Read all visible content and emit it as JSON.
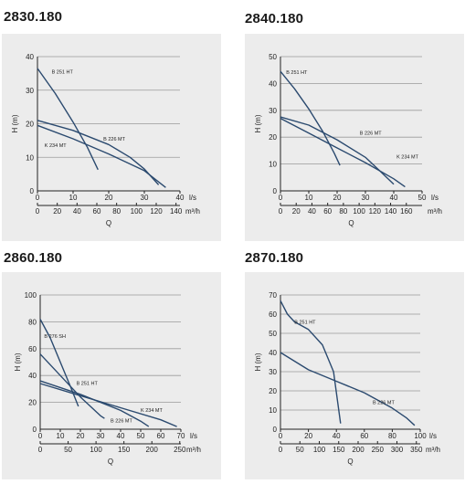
{
  "colors": {
    "curve": "#2b4a6f",
    "grid": "#9a9a9a",
    "panel_bg": "#ececec",
    "axis": "#222222"
  },
  "chart_data": [
    {
      "title": "2830.180",
      "type": "line",
      "ylabel": "H (m)",
      "xlabel": "Q",
      "x_unit": "l/s",
      "x2_unit": "m³/h",
      "ylim": [
        0,
        40
      ],
      "yticks": [
        0,
        10,
        20,
        30,
        40
      ],
      "xlim": [
        0,
        40
      ],
      "xticks": [
        0,
        10,
        20,
        30,
        40
      ],
      "x2_ticks": [
        0,
        20,
        40,
        60,
        80,
        100,
        120,
        140
      ],
      "x2_per_x": 3.6,
      "grid": "horizontal",
      "series": [
        {
          "name": "B 251 HT",
          "x": [
            0,
            5,
            10,
            14,
            17
          ],
          "y": [
            36.5,
            29,
            20.5,
            13,
            6.3
          ],
          "label_at": [
            4,
            35
          ]
        },
        {
          "name": "B 226 MT",
          "x": [
            0,
            10,
            20,
            26,
            30,
            34
          ],
          "y": [
            21,
            18,
            13.8,
            10,
            6.5,
            1.8
          ],
          "label_at": [
            18.5,
            15
          ]
        },
        {
          "name": "K 234 MT",
          "x": [
            0,
            10,
            20,
            30,
            36
          ],
          "y": [
            19.5,
            15.5,
            11,
            6,
            1
          ],
          "label_at": [
            2,
            13
          ]
        }
      ]
    },
    {
      "title": "2840.180",
      "type": "line",
      "ylabel": "H (m)",
      "xlabel": "Q",
      "x_unit": "l/s",
      "x2_unit": "m³/h",
      "ylim": [
        0,
        50
      ],
      "yticks": [
        0,
        10,
        20,
        30,
        40,
        50
      ],
      "xlim": [
        0,
        50
      ],
      "xticks": [
        0,
        10,
        20,
        30,
        40,
        50
      ],
      "x2_ticks": [
        0,
        20,
        40,
        60,
        80,
        100,
        120,
        140,
        160
      ],
      "x2_per_x": 3.6,
      "grid": "horizontal",
      "series": [
        {
          "name": "B 251 HT",
          "x": [
            0,
            5,
            10,
            15,
            19,
            21
          ],
          "y": [
            44.5,
            38,
            30.5,
            22,
            14,
            9.5
          ],
          "label_at": [
            2,
            43.5
          ]
        },
        {
          "name": "B 226 MT",
          "x": [
            0,
            10,
            20,
            30,
            35,
            40
          ],
          "y": [
            27.5,
            24.5,
            19,
            12.5,
            7.5,
            2.5
          ],
          "label_at": [
            28,
            21
          ]
        },
        {
          "name": "K 234 MT",
          "x": [
            0,
            10,
            20,
            30,
            40,
            44
          ],
          "y": [
            27,
            21.5,
            16,
            10.5,
            4.5,
            1.5
          ],
          "label_at": [
            41,
            12
          ]
        }
      ]
    },
    {
      "title": "2860.180",
      "type": "line",
      "ylabel": "H (m)",
      "xlabel": "Q",
      "x_unit": "l/s",
      "x2_unit": "m³/h",
      "ylim": [
        0,
        100
      ],
      "yticks": [
        0,
        20,
        40,
        60,
        80,
        100
      ],
      "xlim": [
        0,
        70
      ],
      "xticks": [
        0,
        10,
        20,
        30,
        40,
        50,
        60,
        70
      ],
      "x2_ticks": [
        0,
        50,
        100,
        150,
        200,
        250
      ],
      "x2_per_x": 3.6,
      "grid": "horizontal",
      "series": [
        {
          "name": "B 276 SH",
          "x": [
            0,
            5,
            10,
            15,
            19
          ],
          "y": [
            82,
            68,
            50,
            32,
            17
          ],
          "label_at": [
            2,
            68
          ]
        },
        {
          "name": "B 251 HT",
          "x": [
            0,
            10,
            20,
            30,
            32
          ],
          "y": [
            56,
            40,
            24,
            10,
            8
          ],
          "label_at": [
            18,
            33
          ]
        },
        {
          "name": "B 226 MT",
          "x": [
            0,
            20,
            40,
            50,
            54
          ],
          "y": [
            36,
            26,
            14,
            6,
            2
          ],
          "label_at": [
            35,
            5
          ]
        },
        {
          "name": "K 234 MT",
          "x": [
            0,
            20,
            40,
            60,
            68
          ],
          "y": [
            34,
            25,
            16,
            7,
            2
          ],
          "label_at": [
            50,
            13
          ]
        }
      ]
    },
    {
      "title": "2870.180",
      "type": "line",
      "ylabel": "H (m)",
      "xlabel": "Q",
      "x_unit": "l/s",
      "x2_unit": "m³/h",
      "ylim": [
        0,
        70
      ],
      "yticks": [
        0,
        10,
        20,
        30,
        40,
        50,
        60,
        70
      ],
      "xlim": [
        0,
        100
      ],
      "xticks": [
        0,
        20,
        40,
        60,
        80,
        100
      ],
      "x2_ticks": [
        0,
        50,
        100,
        150,
        200,
        250,
        300,
        350
      ],
      "x2_per_x": 3.6,
      "grid": "horizontal",
      "series": [
        {
          "name": "B 251 HT",
          "x": [
            0,
            5,
            10,
            20,
            30,
            38,
            43
          ],
          "y": [
            67,
            60,
            56,
            52,
            44,
            30,
            3
          ],
          "label_at": [
            10,
            55
          ]
        },
        {
          "name": "B 226 MT",
          "x": [
            0,
            20,
            40,
            60,
            80,
            90,
            96
          ],
          "y": [
            40,
            31,
            25,
            19,
            11,
            6,
            2
          ],
          "label_at": [
            66,
            13
          ]
        }
      ]
    }
  ]
}
